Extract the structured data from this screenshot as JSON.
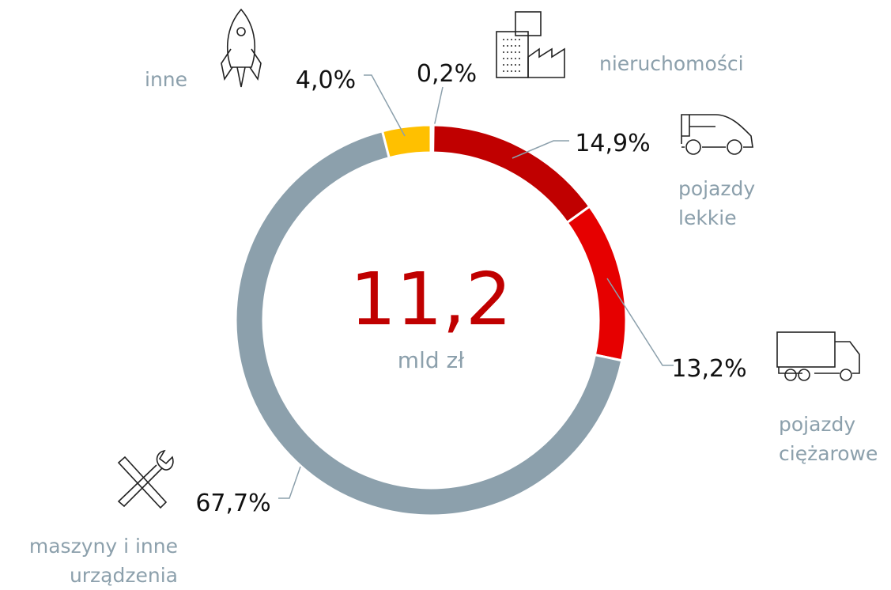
{
  "chart_data": {
    "type": "donut",
    "categories": [
      "nieruchomości",
      "pojazdy lekkie",
      "pojazdy ciężarowe",
      "maszyny i inne urządzenia",
      "inne"
    ],
    "values": [
      0.2,
      14.9,
      13.2,
      67.7,
      4.0
    ],
    "value_labels": [
      "0,2%",
      "14,9%",
      "13,2%",
      "67,7%",
      "4,0%"
    ],
    "colors": [
      "#8b0000",
      "#c00000",
      "#e60000",
      "#8ca0ac",
      "#ffc000"
    ],
    "center": {
      "value": 11.2,
      "label": "11,2"
    },
    "center_unit": "mld zł"
  }
}
